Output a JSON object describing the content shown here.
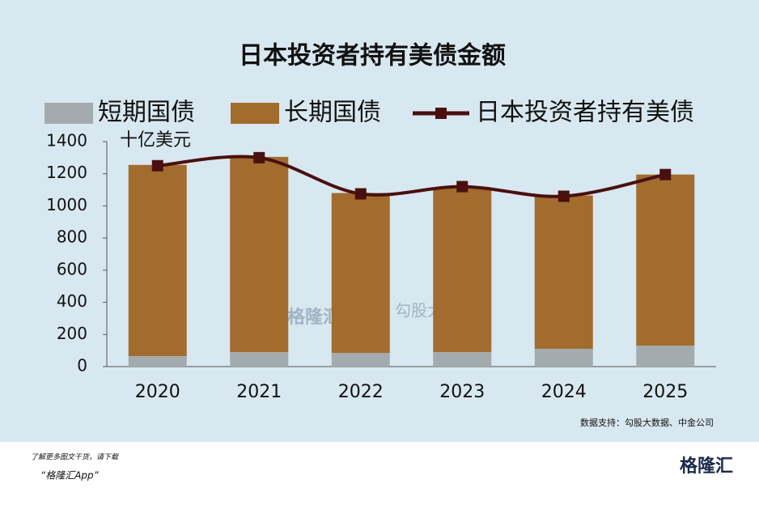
{
  "chart_data": {
    "type": "bar",
    "stacked": true,
    "title": "日本投资者持有美债金额",
    "unit_label": "十亿美元",
    "categories": [
      "2020",
      "2021",
      "2022",
      "2023",
      "2024",
      "2025"
    ],
    "series": [
      {
        "name": "短期国债",
        "color": "#a3abae",
        "values": [
          65,
          90,
          85,
          90,
          110,
          130
        ]
      },
      {
        "name": "长期国债",
        "color": "#a26c2e",
        "values": [
          1190,
          1215,
          995,
          1025,
          955,
          1065
        ]
      },
      {
        "name": "日本投资者持有美债",
        "type": "line",
        "color": "#4a1010",
        "values": [
          1250,
          1300,
          1075,
          1120,
          1060,
          1195
        ]
      }
    ],
    "ylim": [
      0,
      1400
    ],
    "yticks": [
      0,
      200,
      400,
      600,
      800,
      1000,
      1200,
      1400
    ],
    "grid": false,
    "source": "数据支持：勾股大数据、中金公司",
    "watermark": [
      "格隆汇",
      "勾股大数据"
    ]
  },
  "footer": {
    "promo": "了解更多图文干货，请下载",
    "app": "“格隆汇App”",
    "logo": "格隆汇"
  }
}
